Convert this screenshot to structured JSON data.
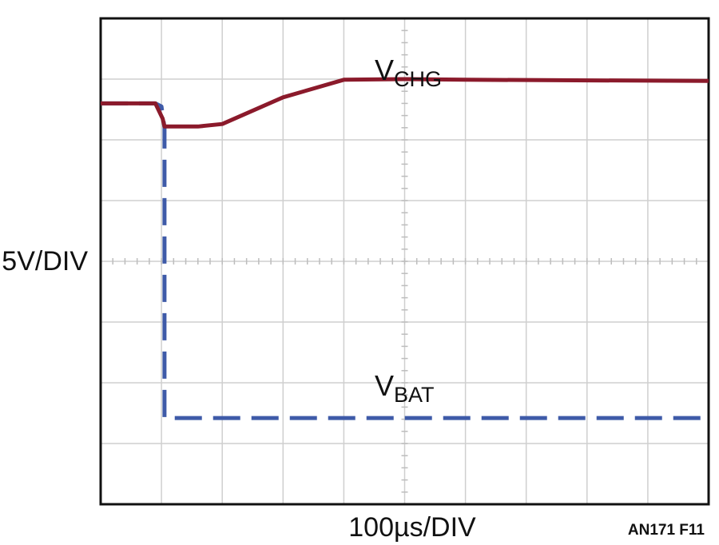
{
  "chart_data": {
    "type": "line",
    "x_divisions": 10,
    "y_divisions": 8,
    "x_range": [
      0,
      10
    ],
    "y_range": [
      0,
      8
    ],
    "grid": true,
    "xlabel": "100µs/DIV",
    "ylabel": "5V/DIV",
    "footer": "AN171 F11",
    "series": [
      {
        "name": "V",
        "name_sub": "CHG",
        "style": "solid",
        "color": "#8b1a2b",
        "points": [
          [
            0,
            6.6
          ],
          [
            0.9,
            6.6
          ],
          [
            1.02,
            6.35
          ],
          [
            1.05,
            6.22
          ],
          [
            1.6,
            6.22
          ],
          [
            2,
            6.26
          ],
          [
            3,
            6.7
          ],
          [
            4,
            6.99
          ],
          [
            5,
            7.0
          ],
          [
            6,
            6.99
          ],
          [
            10,
            6.97
          ]
        ]
      },
      {
        "name": "V",
        "name_sub": "BAT",
        "style": "dashed",
        "color": "#3e5aa8",
        "points": [
          [
            0,
            6.6
          ],
          [
            0.9,
            6.6
          ],
          [
            1.0,
            6.55
          ],
          [
            1.05,
            6.2
          ],
          [
            1.05,
            1.42
          ],
          [
            10,
            1.42
          ]
        ]
      }
    ],
    "annotations": [
      {
        "text": "V",
        "sub": "CHG",
        "series": 0
      },
      {
        "text": "V",
        "sub": "BAT",
        "series": 1
      }
    ]
  }
}
